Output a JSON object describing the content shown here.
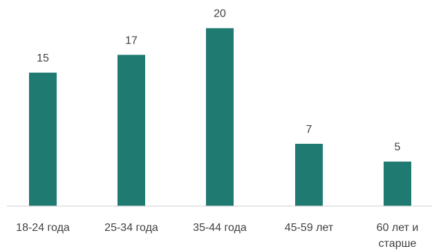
{
  "chart_data": {
    "type": "bar",
    "categories": [
      "18-24 года",
      "25-34 года",
      "35-44 года",
      "45-59 лет",
      "60 лет и старше"
    ],
    "values": [
      15,
      17,
      20,
      7,
      5
    ],
    "ylim": [
      0,
      22
    ],
    "grid": false,
    "legend": "none",
    "data_labels": true,
    "colors": {
      "bar": "#1f7a72",
      "axis": "#d0d0d0",
      "text": "#404040"
    }
  }
}
